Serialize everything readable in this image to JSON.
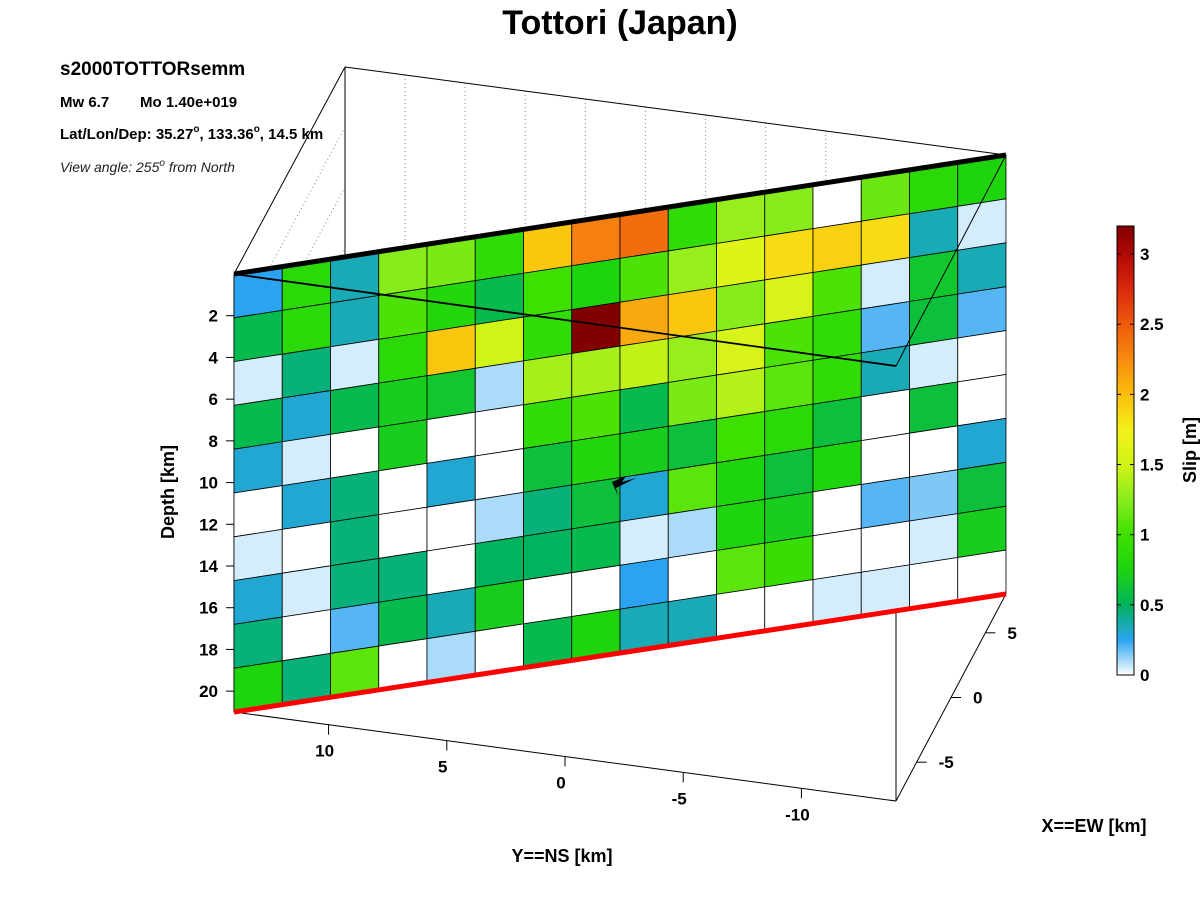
{
  "chart_data": {
    "type": "heatmap",
    "title": "Tottori (Japan)",
    "event_id": "s2000TOTTORsemm",
    "magnitude_text": "Mw 6.7",
    "moment_text": "Mo 1.40e+019",
    "location_text_main": "Lat/Lon/Dep: 35.27",
    "location_text_lon": ", 133.36",
    "location_text_end": ", 14.5 km",
    "degree_symbol": "o",
    "view_text_main": "View angle: 255",
    "view_text_end": " from North",
    "zlabel": "Depth [km]",
    "ylabel": "Y==NS [km]",
    "xlabel": "X==EW [km]",
    "colorbar_label": "Slip [m]",
    "depth_ticks": [
      "2",
      "4",
      "6",
      "8",
      "10",
      "12",
      "14",
      "16",
      "18",
      "20"
    ],
    "ns_ticks": [
      "10",
      "5",
      "0",
      "-5",
      "-10"
    ],
    "ew_ticks": [
      "5",
      "0",
      "-5"
    ],
    "colorbar_ticks": [
      "0",
      "0.5",
      "1",
      "1.5",
      "2",
      "2.5",
      "3"
    ],
    "colorbar_range": [
      0,
      3.2
    ],
    "depth_range": [
      0,
      21
    ],
    "grid": true,
    "n_rows": 10,
    "n_cols": 16,
    "slip": [
      [
        0.25,
        0.85,
        0.35,
        1.25,
        1.2,
        0.9,
        1.95,
        2.3,
        2.4,
        0.9,
        1.3,
        1.25,
        0.0,
        1.15,
        0.85,
        0.75
      ],
      [
        0.55,
        0.85,
        0.35,
        1.05,
        0.8,
        0.55,
        1.0,
        0.75,
        1.05,
        1.3,
        1.6,
        1.85,
        1.9,
        1.85,
        0.35,
        0.05
      ],
      [
        0.05,
        0.45,
        0.05,
        0.85,
        1.95,
        1.5,
        0.9,
        3.2,
        2.1,
        1.95,
        1.25,
        1.55,
        1.05,
        0.05,
        0.65,
        0.35
      ],
      [
        0.55,
        0.3,
        0.55,
        0.7,
        0.65,
        0.1,
        1.35,
        1.35,
        1.45,
        1.3,
        1.55,
        1.05,
        0.9,
        0.2,
        0.6,
        0.2
      ],
      [
        0.3,
        0.05,
        0.0,
        0.7,
        0.0,
        0.0,
        0.9,
        1.05,
        0.55,
        1.2,
        1.4,
        1.1,
        0.9,
        0.35,
        0.05,
        0.0
      ],
      [
        0.0,
        0.3,
        0.45,
        0.0,
        0.3,
        0.0,
        0.6,
        0.8,
        0.7,
        0.6,
        1.0,
        0.85,
        0.6,
        0.0,
        0.6,
        0.0
      ],
      [
        0.05,
        0.0,
        0.45,
        0.0,
        0.0,
        0.1,
        0.45,
        0.6,
        0.3,
        1.1,
        0.75,
        0.6,
        0.75,
        0.0,
        0.0,
        0.3
      ],
      [
        0.3,
        0.05,
        0.45,
        0.45,
        0.0,
        0.5,
        0.5,
        0.55,
        0.05,
        0.1,
        0.75,
        0.7,
        0.0,
        0.2,
        0.15,
        0.6
      ],
      [
        0.45,
        0.0,
        0.2,
        0.55,
        0.35,
        0.7,
        0.0,
        0.0,
        0.25,
        0.0,
        1.1,
        0.95,
        0.0,
        0.0,
        0.05,
        0.7
      ],
      [
        0.75,
        0.45,
        1.1,
        0.0,
        0.1,
        0.0,
        0.55,
        0.75,
        0.35,
        0.35,
        0.0,
        0.0,
        0.05,
        0.05,
        0.0,
        0.0
      ]
    ],
    "hypocenter": {
      "along_strike_km": 0.5,
      "depth_km": 13.0
    },
    "colors": {
      "top_edge": "#000000",
      "bottom_edge": "#ff0000",
      "grid": "#777777",
      "cell_border": "#000000"
    },
    "colormap_stops": [
      [
        0.0,
        "#ffffff"
      ],
      [
        0.25,
        "#2aa4f0"
      ],
      [
        0.5,
        "#00b35c"
      ],
      [
        0.75,
        "#1ed40f"
      ],
      [
        1.0,
        "#3ee000"
      ],
      [
        1.25,
        "#88ec1c"
      ],
      [
        1.5,
        "#d0f416"
      ],
      [
        1.75,
        "#f4f11a"
      ],
      [
        2.0,
        "#fbbd0b"
      ],
      [
        2.25,
        "#f78a10"
      ],
      [
        2.5,
        "#ef5a0c"
      ],
      [
        2.75,
        "#d9290c"
      ],
      [
        3.0,
        "#b00805"
      ],
      [
        3.2,
        "#820000"
      ]
    ]
  }
}
